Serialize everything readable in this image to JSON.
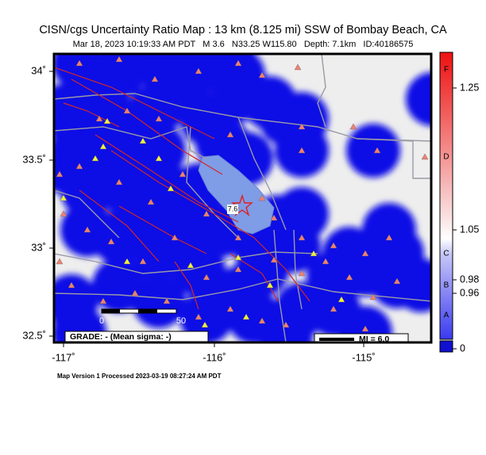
{
  "header": {
    "title": "CISN/cgs Uncertainty Ratio Map : 13 km (8.125 mi) SSW of Bombay Beach, CA",
    "subtitle": "Mar 18, 2023 10:19:33 AM PDT   M 3.6   N33.25 W115.80   Depth: 7.1km   ID:40186575"
  },
  "map": {
    "lat_labels": [
      "34˚",
      "33.5˚",
      "33˚",
      "32.5˚"
    ],
    "lon_labels": [
      "-117˚",
      "-116˚",
      "-115˚"
    ],
    "grade": "GRADE: - (Mean sigma: -)",
    "scale_labels": [
      "0",
      "50"
    ],
    "mi_label": "MI = 6.0",
    "city_label": "7.6"
  },
  "colorbar": {
    "letters": [
      "F",
      "D",
      "C",
      "B",
      "A"
    ],
    "numbers": [
      "1.25",
      "1.05",
      "0.98",
      "0.96",
      "0"
    ]
  },
  "footer": "Map Version 1 Processed 2023-03-19 08:27:24 AM PDT"
}
